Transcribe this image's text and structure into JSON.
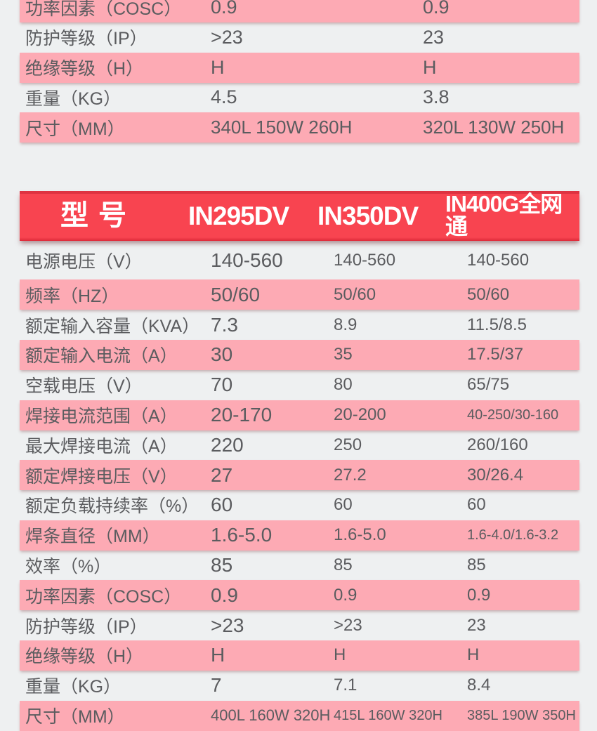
{
  "colors": {
    "page_background": "#eef0f1",
    "row_pink": "#fdaab4",
    "header_red": "#f84450",
    "header_red_dark": "#de3341",
    "text_gray": "#5b5c5f",
    "header_text": "#ffffff"
  },
  "table_top": {
    "note": "upper spec table, partially cropped at top, two model value columns",
    "rows": [
      {
        "label": "功率因素（COSC）",
        "values": [
          "0.9",
          "0.9"
        ],
        "pink": true
      },
      {
        "label": "防护等级（IP）",
        "values": [
          ">23",
          "23"
        ],
        "pink": false
      },
      {
        "label": "绝缘等级（H）",
        "values": [
          "H",
          "H"
        ],
        "pink": true
      },
      {
        "label": "重量（KG）",
        "values": [
          "4.5",
          "3.8"
        ],
        "pink": false
      },
      {
        "label": "尺寸（MM）",
        "values": [
          "340L 150W 260H",
          "320L 130W 250H"
        ],
        "pink": true
      }
    ]
  },
  "model_header": {
    "label": "型号",
    "models": [
      "IN295DV",
      "IN350DV",
      "IN400G全网通"
    ]
  },
  "table_main": {
    "rows": [
      {
        "label": "电源电压（V）",
        "values": [
          "140-560",
          "140-560",
          "140-560"
        ],
        "pink": false
      },
      {
        "label": "频率（HZ）",
        "values": [
          "50/60",
          "50/60",
          "50/60"
        ],
        "pink": true
      },
      {
        "label": "额定输入容量（KVA）",
        "values": [
          "7.3",
          "8.9",
          "11.5/8.5"
        ],
        "pink": false
      },
      {
        "label": "额定输入电流（A）",
        "values": [
          "30",
          "35",
          "17.5/37"
        ],
        "pink": true
      },
      {
        "label": "空载电压（V）",
        "values": [
          "70",
          "80",
          "65/75"
        ],
        "pink": false
      },
      {
        "label": "焊接电流范围（A）",
        "values": [
          "20-170",
          "20-200",
          "40-250/30-160"
        ],
        "pink": true
      },
      {
        "label": "最大焊接电流（A）",
        "values": [
          "220",
          "250",
          "260/160"
        ],
        "pink": false
      },
      {
        "label": "额定焊接电压（V）",
        "values": [
          "27",
          "27.2",
          "30/26.4"
        ],
        "pink": true
      },
      {
        "label": "额定负载持续率（%）",
        "values": [
          "60",
          "60",
          "60"
        ],
        "pink": false
      },
      {
        "label": "焊条直径（MM）",
        "values": [
          "1.6-5.0",
          "1.6-5.0",
          "1.6-4.0/1.6-3.2"
        ],
        "pink": true
      },
      {
        "label": "效率（%）",
        "values": [
          "85",
          "85",
          "85"
        ],
        "pink": false
      },
      {
        "label": "功率因素（COSC）",
        "values": [
          "0.9",
          "0.9",
          "0.9"
        ],
        "pink": true
      },
      {
        "label": "防护等级（IP）",
        "values": [
          ">23",
          ">23",
          "23"
        ],
        "pink": false
      },
      {
        "label": "绝缘等级（H）",
        "values": [
          "H",
          "H",
          "H"
        ],
        "pink": true
      },
      {
        "label": "重量（KG）",
        "values": [
          "7",
          "7.1",
          "8.4"
        ],
        "pink": false
      },
      {
        "label": "尺寸（MM）",
        "values": [
          "400L 160W 320H",
          "415L 160W 320H",
          "385L 190W 350H"
        ],
        "pink": true
      }
    ]
  }
}
